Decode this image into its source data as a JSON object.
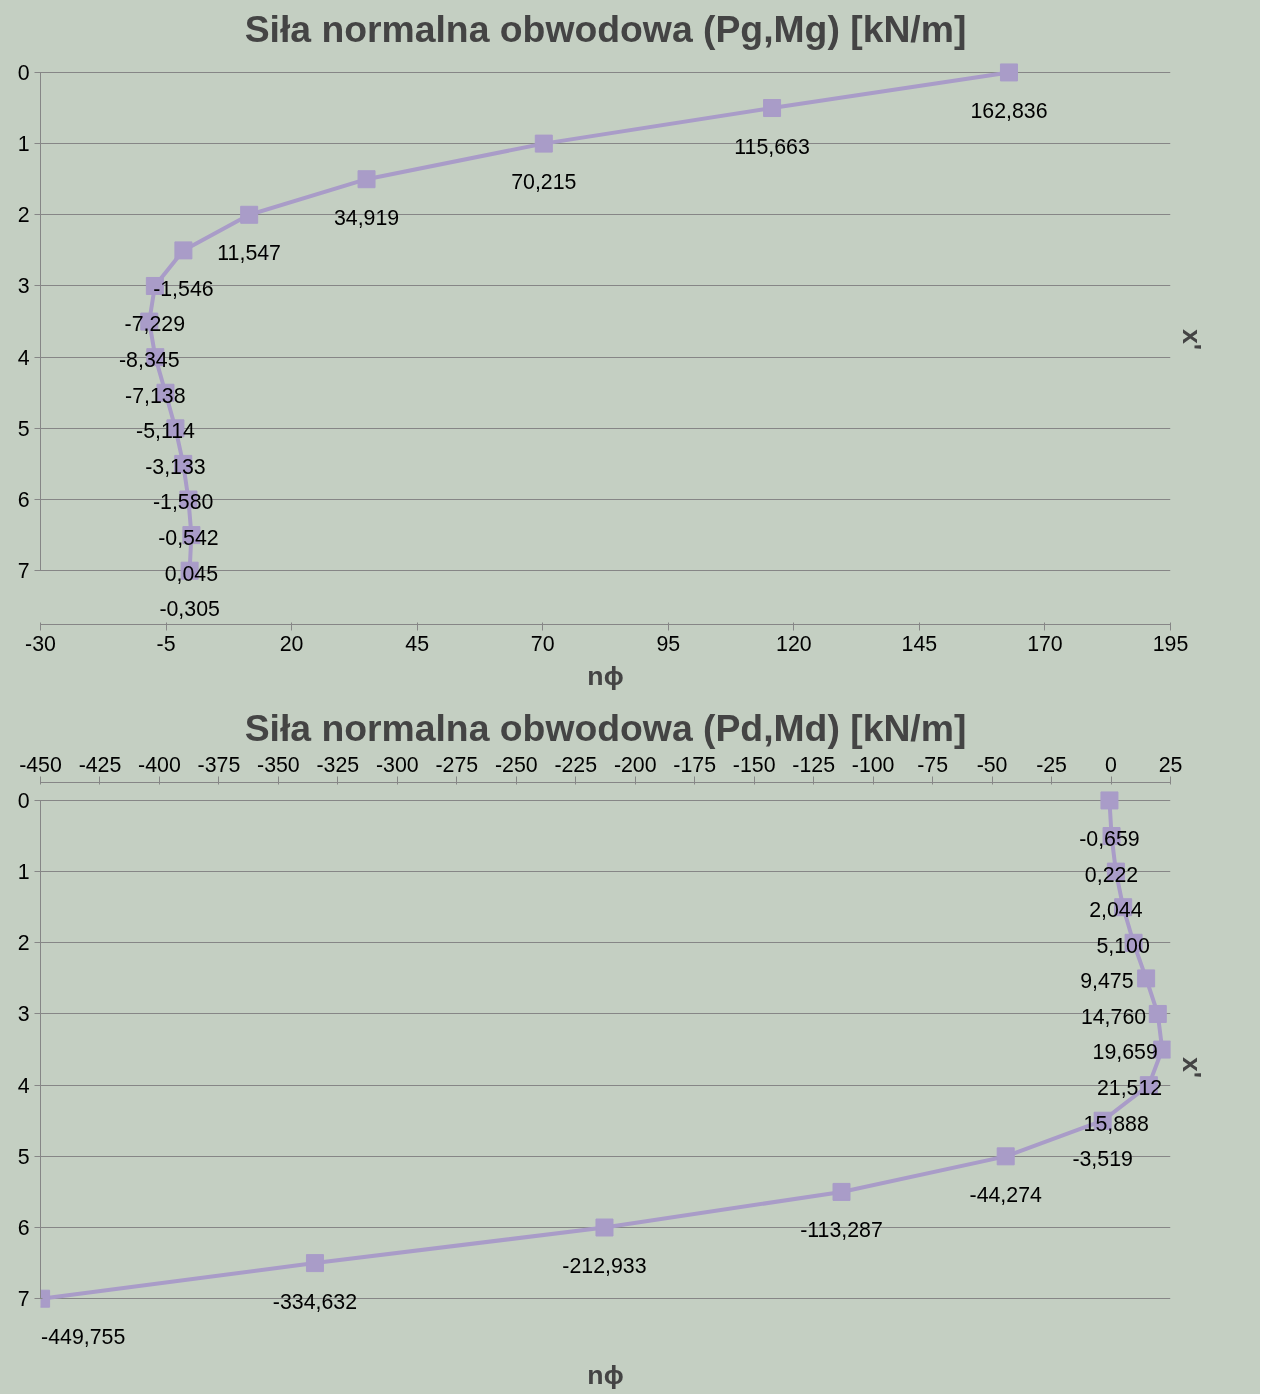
{
  "chart_data": [
    {
      "type": "line",
      "title": "Siła normalna obwodowa (Pg,Mg) [kN/m]",
      "xlabel": "nϕ",
      "ylabel": "x'",
      "orientation": "horizontal",
      "marker": "square",
      "line_style": "solid",
      "grid": "y",
      "x": [
        0,
        0.5,
        1,
        1.5,
        2,
        2.5,
        3,
        3.5,
        4,
        4.5,
        5,
        5.5,
        6,
        6.5,
        7
      ],
      "series": [
        {
          "color": "#a99cc8",
          "values": [
            162.836,
            115.663,
            70.215,
            34.919,
            11.547,
            -1.546,
            -7.229,
            -8.345,
            -7.138,
            -5.114,
            -3.133,
            -1.58,
            -0.542,
            0.045,
            -0.305
          ],
          "value_labels": [
            "162,836",
            "115,663",
            "70,215",
            "34,919",
            "11,547",
            "-1,546",
            "-7,229",
            "-8,345",
            "-7,138",
            "-5,114",
            "-3,133",
            "-1,580",
            "-0,542",
            "0,045",
            "-0,305"
          ]
        }
      ],
      "xlim": [
        -30,
        195
      ],
      "xticks": [
        -30,
        -5,
        20,
        45,
        70,
        95,
        120,
        145,
        170,
        195
      ],
      "ylim": [
        7,
        0
      ],
      "yticks": [
        0,
        1,
        2,
        3,
        4,
        5,
        6,
        7
      ]
    },
    {
      "type": "line",
      "title": "Siła normalna obwodowa (Pd,Md) [kN/m]",
      "xlabel": "nϕ",
      "ylabel": "x'",
      "orientation": "horizontal",
      "marker": "square",
      "line_style": "solid",
      "grid": "y",
      "x": [
        0,
        0.5,
        1,
        1.5,
        2,
        2.5,
        3,
        3.5,
        4,
        4.5,
        5,
        5.5,
        6,
        6.5,
        7
      ],
      "series": [
        {
          "color": "#a99cc8",
          "values": [
            -0.659,
            0.222,
            2.044,
            5.1,
            9.475,
            14.76,
            19.659,
            21.512,
            15.888,
            -3.519,
            -44.274,
            -113.287,
            -212.933,
            -334.632,
            -449.755
          ],
          "value_labels": [
            "-0,659",
            "0,222",
            "2,044",
            "5,100",
            "9,475",
            "14,760",
            "19,659",
            "21,512",
            "15,888",
            "-3,519",
            "-44,274",
            "-113,287",
            "-212,933",
            "-334,632",
            "-449,755"
          ]
        }
      ],
      "xlim": [
        -450,
        25
      ],
      "xticks": [
        -450,
        -425,
        -400,
        -375,
        -350,
        -325,
        -300,
        -275,
        -250,
        -225,
        -200,
        -175,
        -150,
        -125,
        -100,
        -75,
        -50,
        -25,
        0,
        25
      ],
      "ylim": [
        7,
        0
      ],
      "yticks": [
        0,
        1,
        2,
        3,
        4,
        5,
        6,
        7
      ]
    }
  ]
}
